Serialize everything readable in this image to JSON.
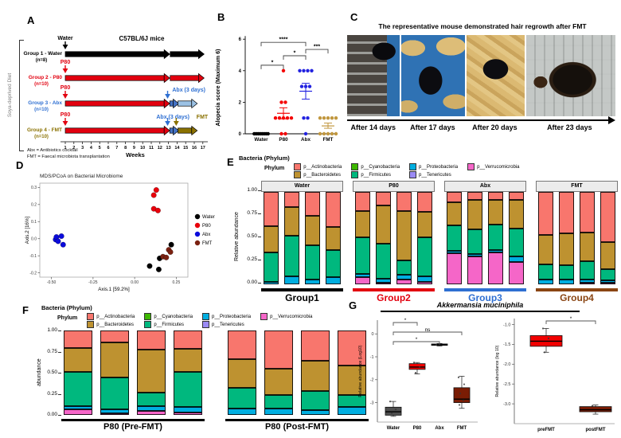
{
  "panels": {
    "a": {
      "label": "A",
      "side_label": "Soya-deprived Diet",
      "title": "C57BL/6J mice",
      "weeks_label": "Weeks",
      "weeks": [
        "1",
        "2",
        "3",
        "4",
        "5",
        "6",
        "7",
        "8",
        "9",
        "10",
        "11",
        "12",
        "13",
        "14",
        "15",
        "16",
        "17"
      ],
      "groups": [
        {
          "name": "Group 1 - Water",
          "n": "(n=8)",
          "label_color": "#000000",
          "bar1_color": "#000000",
          "bar2_color": "#000000",
          "start_label": "Water",
          "start_color": "#000000"
        },
        {
          "name": "Group 2 - P80",
          "n": "(n=10)",
          "label_color": "#e2000f",
          "bar1_color": "#e2000f",
          "bar2_color": "#e2000f",
          "start_label": "P80",
          "start_color": "#e2000f"
        },
        {
          "name": "Group 3 - Abx",
          "n": "(n=10)",
          "label_color": "#2e6fd2",
          "bar1_color": "#e2000f",
          "bar2_color": "#9cc2e5",
          "start_label": "P80",
          "start_color": "#e2000f",
          "abx_label": "Abx (3 days)",
          "abx_color": "#2e6fd2"
        },
        {
          "name": "Group 4 - FMT",
          "n": "(n=10)",
          "label_color": "#8a7100",
          "bar1_color": "#e2000f",
          "bar2_color": "#8a7100",
          "start_label": "P80",
          "start_color": "#e2000f",
          "abx_label": "Abx (3 days)",
          "abx_color": "#2e6fd2",
          "fmt_label": "FMT",
          "fmt_color": "#8a7100"
        }
      ],
      "footnotes": [
        "Abx = Antibiotics cocktail",
        "FMT = Faecal microbiota transplantation"
      ]
    },
    "b": {
      "label": "B"
    },
    "c": {
      "label": "C",
      "title": "The representative mouse demonstrated hair regrowth after FMT",
      "captions": [
        "After 14 days",
        "After 17 days",
        "After 20 days",
        "After 23 days"
      ]
    },
    "d": {
      "label": "D"
    },
    "e": {
      "label": "E",
      "header": "Bacteria (Phylum)",
      "legend_title": "Phylum"
    },
    "f": {
      "label": "F",
      "header": "Bacteria (Phylum)",
      "legend_title": "Phylum"
    },
    "g": {
      "label": "G",
      "title": "Akkermansia muciniphila"
    }
  },
  "phylum_legend": [
    {
      "name": "p__Actinobacteria",
      "color": "#f8766d"
    },
    {
      "name": "p__Bacteroidetes",
      "color": "#be9230"
    },
    {
      "name": "p__Cyanobacteria",
      "color": "#3db800"
    },
    {
      "name": "p__Firmicutes",
      "color": "#00b87e"
    },
    {
      "name": "p__Proteobacteria",
      "color": "#00aee0"
    },
    {
      "name": "p__Tenericutes",
      "color": "#9b8bf4"
    },
    {
      "name": "p__Verrucomicrobia",
      "color": "#f566c8"
    }
  ],
  "chart_data": [
    {
      "id": "alopecia_score",
      "type": "scatter",
      "ylabel": "Alopecia score (Maximum 6)",
      "ylim": [
        0,
        6
      ],
      "yticks": [
        0,
        2,
        4,
        6
      ],
      "categories": [
        "Water",
        "P80",
        "Abx",
        "FMT"
      ],
      "colors": [
        "#000000",
        "#f40000",
        "#2222e0",
        "#c1973f"
      ],
      "series": [
        {
          "name": "Water",
          "values": [
            0,
            0,
            0,
            0,
            0,
            0,
            0,
            0
          ],
          "mean": 0,
          "err_low": 0,
          "err_high": 0
        },
        {
          "name": "P80",
          "values": [
            4,
            2,
            2,
            1,
            1,
            1,
            1,
            1,
            0,
            0
          ],
          "mean": 1.3,
          "err_low": 0.95,
          "err_high": 1.65
        },
        {
          "name": "Abx",
          "values": [
            4,
            4,
            4,
            4,
            3,
            3,
            3,
            1,
            1,
            0
          ],
          "mean": 2.7,
          "err_low": 2.2,
          "err_high": 3.2
        },
        {
          "name": "FMT",
          "values": [
            1,
            1,
            1,
            1,
            1,
            0,
            0,
            0,
            0,
            0
          ],
          "mean": 0.5,
          "err_low": 0.35,
          "err_high": 0.68
        }
      ],
      "significance": [
        {
          "from": "Water",
          "to": "P80",
          "label": "*",
          "height": 4.35
        },
        {
          "from": "P80",
          "to": "Abx",
          "label": "*",
          "height": 4.95
        },
        {
          "from": "Abx",
          "to": "FMT",
          "label": "***",
          "height": 5.35
        },
        {
          "from": "Water",
          "to": "Abx",
          "label": "****",
          "height": 5.8
        }
      ]
    },
    {
      "id": "pcoa",
      "type": "scatter",
      "title": "MDS/PCoA on Bacterial Microbiome",
      "xlabel": "Axis.1   [59.2%]",
      "ylabel": "Axis.2   [16%]",
      "xlim": [
        -0.57,
        0.32
      ],
      "ylim": [
        -0.225,
        0.325
      ],
      "xticks": [
        -0.5,
        -0.25,
        0,
        0.25
      ],
      "xtick_labels": [
        "-0.50",
        "-0.25",
        "0.00",
        "0.25"
      ],
      "yticks": [
        -0.2,
        -0.1,
        0,
        0.1,
        0.2,
        0.3
      ],
      "ytick_labels": [
        "-0.2",
        "-0.1",
        "0.0",
        "0.1",
        "0.2",
        "0.3"
      ],
      "legend_position": "right",
      "series": [
        {
          "name": "Water",
          "color": "#000000",
          "points": [
            [
              0.09,
              -0.16
            ],
            [
              0.145,
              -0.18
            ],
            [
              0.15,
              -0.115
            ],
            [
              0.22,
              -0.035
            ]
          ]
        },
        {
          "name": "P80",
          "color": "#e8000b",
          "points": [
            [
              0.115,
              0.255
            ],
            [
              0.13,
              0.285
            ],
            [
              0.115,
              0.175
            ],
            [
              0.14,
              0.165
            ]
          ]
        },
        {
          "name": "Abx",
          "color": "#0b0bdb",
          "points": [
            [
              -0.475,
              -0.005
            ],
            [
              -0.47,
              0.01
            ],
            [
              -0.46,
              -0.015
            ],
            [
              -0.44,
              0.015
            ],
            [
              -0.43,
              -0.035
            ]
          ]
        },
        {
          "name": "FMT",
          "color": "#7b2111",
          "points": [
            [
              0.17,
              -0.105
            ],
            [
              0.19,
              -0.11
            ],
            [
              0.205,
              -0.065
            ],
            [
              0.215,
              -0.078
            ]
          ]
        }
      ]
    },
    {
      "id": "phylum_by_group",
      "type": "bar",
      "stacked": true,
      "ylabel": "Relative abundance",
      "ylim": [
        0,
        1
      ],
      "yticks": [
        "0.00",
        "0.25",
        "0.50",
        "0.75",
        "1.00"
      ],
      "ytick_values": [
        0,
        0.25,
        0.5,
        0.75,
        1
      ],
      "stack_order": [
        "p__Verrucomicrobia",
        "p__Tenericutes",
        "p__Proteobacteria",
        "p__Firmicutes",
        "p__Cyanobacteria",
        "p__Bacteroidetes",
        "p__Actinobacteria"
      ],
      "facets": [
        {
          "strip": "Water",
          "group_label": "Group1",
          "group_color": "#000000",
          "bars": [
            {
              "p__Proteobacteria": 0.025,
              "p__Firmicutes": 0.32,
              "p__Bacteroidetes": 0.285,
              "p__Actinobacteria": 0.37
            },
            {
              "p__Proteobacteria": 0.085,
              "p__Firmicutes": 0.44,
              "p__Bacteroidetes": 0.31,
              "p__Actinobacteria": 0.165
            },
            {
              "p__Proteobacteria": 0.055,
              "p__Firmicutes": 0.37,
              "p__Bacteroidetes": 0.315,
              "p__Actinobacteria": 0.26
            },
            {
              "p__Proteobacteria": 0.075,
              "p__Firmicutes": 0.295,
              "p__Bacteroidetes": 0.25,
              "p__Actinobacteria": 0.38
            }
          ]
        },
        {
          "strip": "P80",
          "group_label": "Group2",
          "group_color": "#e2000f",
          "bars": [
            {
              "p__Verrucomicrobia": 0.075,
              "p__Proteobacteria": 0.035,
              "p__Firmicutes": 0.4,
              "p__Bacteroidetes": 0.285,
              "p__Actinobacteria": 0.205
            },
            {
              "p__Verrucomicrobia": 0.015,
              "p__Proteobacteria": 0.045,
              "p__Firmicutes": 0.38,
              "p__Bacteroidetes": 0.415,
              "p__Actinobacteria": 0.145
            },
            {
              "p__Verrucomicrobia": 0.05,
              "p__Proteobacteria": 0.05,
              "p__Firmicutes": 0.155,
              "p__Bacteroidetes": 0.535,
              "p__Actinobacteria": 0.21
            },
            {
              "p__Verrucomicrobia": 0.03,
              "p__Proteobacteria": 0.06,
              "p__Firmicutes": 0.42,
              "p__Bacteroidetes": 0.275,
              "p__Actinobacteria": 0.215
            }
          ]
        },
        {
          "strip": "Abx",
          "group_label": "Group3",
          "group_color": "#2e6fd2",
          "bars": [
            {
              "p__Verrucomicrobia": 0.335,
              "p__Proteobacteria": 0.03,
              "p__Firmicutes": 0.27,
              "p__Bacteroidetes": 0.255,
              "p__Actinobacteria": 0.11
            },
            {
              "p__Verrucomicrobia": 0.305,
              "p__Proteobacteria": 0.025,
              "p__Firmicutes": 0.265,
              "p__Bacteroidetes": 0.315,
              "p__Actinobacteria": 0.09
            },
            {
              "p__Verrucomicrobia": 0.345,
              "p__Proteobacteria": 0.03,
              "p__Firmicutes": 0.275,
              "p__Bacteroidetes": 0.26,
              "p__Actinobacteria": 0.09
            },
            {
              "p__Verrucomicrobia": 0.24,
              "p__Proteobacteria": 0.06,
              "p__Firmicutes": 0.305,
              "p__Bacteroidetes": 0.305,
              "p__Actinobacteria": 0.09
            }
          ]
        },
        {
          "strip": "FMT",
          "group_label": "Group4",
          "group_color": "#8a4513",
          "bars": [
            {
              "p__Proteobacteria": 0.05,
              "p__Firmicutes": 0.165,
              "p__Bacteroidetes": 0.32,
              "p__Actinobacteria": 0.465
            },
            {
              "p__Proteobacteria": 0.055,
              "p__Firmicutes": 0.155,
              "p__Bacteroidetes": 0.34,
              "p__Actinobacteria": 0.45
            },
            {
              "p__Verrucomicrobia": 0.015,
              "p__Proteobacteria": 0.035,
              "p__Firmicutes": 0.2,
              "p__Bacteroidetes": 0.31,
              "p__Actinobacteria": 0.44
            },
            {
              "p__Verrucomicrobia": 0.02,
              "p__Proteobacteria": 0.025,
              "p__Firmicutes": 0.115,
              "p__Bacteroidetes": 0.295,
              "p__Actinobacteria": 0.545
            }
          ]
        }
      ]
    },
    {
      "id": "phylum_pre_post_fmt",
      "type": "bar",
      "stacked": true,
      "ylabel": "abundance",
      "ylim": [
        0,
        1
      ],
      "yticks": [
        "0.00",
        "0.25",
        "0.50",
        "0.75",
        "1.00"
      ],
      "ytick_values": [
        0,
        0.25,
        0.5,
        0.75,
        1
      ],
      "stack_order": [
        "p__Verrucomicrobia",
        "p__Tenericutes",
        "p__Proteobacteria",
        "p__Firmicutes",
        "p__Cyanobacteria",
        "p__Bacteroidetes",
        "p__Actinobacteria"
      ],
      "facets": [
        {
          "group_label": "P80 (Pre-FMT)",
          "group_color": "#000000",
          "bars": [
            {
              "p__Verrucomicrobia": 0.07,
              "p__Proteobacteria": 0.035,
              "p__Firmicutes": 0.405,
              "p__Bacteroidetes": 0.28,
              "p__Actinobacteria": 0.21
            },
            {
              "p__Verrucomicrobia": 0.02,
              "p__Proteobacteria": 0.045,
              "p__Firmicutes": 0.375,
              "p__Bacteroidetes": 0.42,
              "p__Actinobacteria": 0.14
            },
            {
              "p__Verrucomicrobia": 0.05,
              "p__Proteobacteria": 0.05,
              "p__Firmicutes": 0.16,
              "p__Bacteroidetes": 0.51,
              "p__Actinobacteria": 0.23
            },
            {
              "p__Verrucomicrobia": 0.03,
              "p__Proteobacteria": 0.06,
              "p__Firmicutes": 0.42,
              "p__Bacteroidetes": 0.27,
              "p__Actinobacteria": 0.22
            }
          ]
        },
        {
          "group_label": "P80 (Post-FMT)",
          "group_color": "#000000",
          "bars": [
            {
              "p__Proteobacteria": 0.075,
              "p__Firmicutes": 0.245,
              "p__Bacteroidetes": 0.34,
              "p__Actinobacteria": 0.34
            },
            {
              "p__Proteobacteria": 0.08,
              "p__Firmicutes": 0.16,
              "p__Bacteroidetes": 0.31,
              "p__Actinobacteria": 0.45
            },
            {
              "p__Proteobacteria": 0.055,
              "p__Firmicutes": 0.225,
              "p__Bacteroidetes": 0.36,
              "p__Actinobacteria": 0.36
            },
            {
              "p__Proteobacteria": 0.09,
              "p__Firmicutes": 0.15,
              "p__Bacteroidetes": 0.345,
              "p__Actinobacteria": 0.415
            }
          ]
        }
      ]
    },
    {
      "id": "akkermansia_by_group",
      "type": "box",
      "ylabel": "Relative abundance (Log10)",
      "ylim": [
        0.6,
        -3.85
      ],
      "yticks": [
        "0",
        "-1",
        "-2",
        "-3"
      ],
      "ytick_values": [
        0,
        -1,
        -2,
        -3
      ],
      "categories": [
        "Water",
        "P80",
        "Abx",
        "FMT"
      ],
      "boxes": [
        {
          "name": "Water",
          "color": "#4f4f4f",
          "low": -3.6,
          "q1": -3.55,
          "median": -3.4,
          "q3": -3.2,
          "high": -2.95,
          "points": [
            -2.95,
            -3.3,
            -3.45
          ]
        },
        {
          "name": "P80",
          "color": "#f20000",
          "low": -1.75,
          "q1": -1.55,
          "median": -1.45,
          "q3": -1.3,
          "high": -1.25,
          "points": [
            -1.25,
            -1.45,
            -1.7
          ]
        },
        {
          "name": "Abx",
          "color": "#1515e8",
          "low": -0.53,
          "q1": -0.5,
          "median": -0.47,
          "q3": -0.44,
          "high": -0.42,
          "points": [
            -0.47
          ]
        },
        {
          "name": "FMT",
          "color": "#7a1c04",
          "low": -3.25,
          "q1": -3.0,
          "median": -2.85,
          "q3": -2.35,
          "high": -1.85,
          "points": [
            -1.9,
            -2.2,
            -2.6,
            -2.9,
            -3.1
          ]
        }
      ],
      "significance": [
        {
          "from": "Water",
          "to": "P80",
          "label": "*",
          "level": 0
        },
        {
          "from": "Water",
          "to": "FMT",
          "label": "ns",
          "level": 1
        },
        {
          "from": "Water",
          "to": "Abx",
          "label": "*",
          "level": 2
        }
      ]
    },
    {
      "id": "akkermansia_pre_post",
      "type": "box",
      "ylabel": "Relative abundance (log 10)",
      "ylim": [
        -0.85,
        -3.5
      ],
      "yticks": [
        "-1.0",
        "-1.5",
        "-2.0",
        "-2.5",
        "-3.0"
      ],
      "ytick_values": [
        -1,
        -1.5,
        -2,
        -2.5,
        -3
      ],
      "categories": [
        "preFMT",
        "postFMT"
      ],
      "boxes": [
        {
          "name": "preFMT",
          "color": "#f20000",
          "low": -1.7,
          "q1": -1.55,
          "median": -1.42,
          "q3": -1.28,
          "high": -1.1,
          "points": [
            -1.1,
            -1.35,
            -1.7
          ]
        },
        {
          "name": "postFMT",
          "color": "#7a1c04",
          "low": -3.26,
          "q1": -3.2,
          "median": -3.15,
          "q3": -3.07,
          "high": -3.03,
          "points": [
            -3.05
          ]
        }
      ],
      "significance": [
        {
          "from": "preFMT",
          "to": "postFMT",
          "label": "*",
          "level": 0
        }
      ]
    }
  ]
}
